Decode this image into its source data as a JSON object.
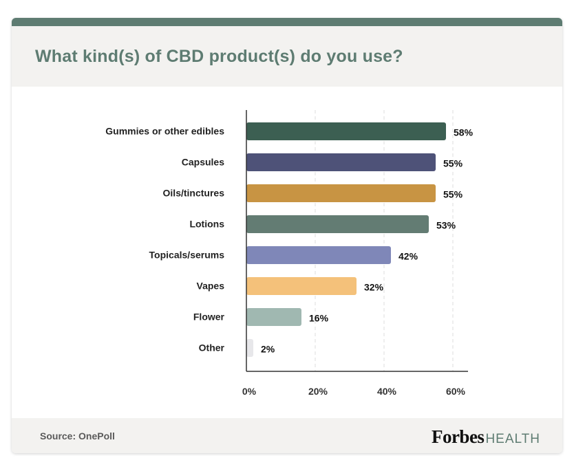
{
  "title": "What kind(s) of CBD product(s) do you use?",
  "source": "Source:  OnePoll",
  "brand": {
    "main": "Forbes",
    "sub": "HEALTH"
  },
  "colors": {
    "accent": "#5e7c72",
    "header_bg": "#f3f2f0",
    "bars": [
      "#3c5f52",
      "#4e5278",
      "#c89443",
      "#637c73",
      "#7f87b8",
      "#f4c17a",
      "#a0b8b1",
      "#e7e7ea"
    ]
  },
  "chart_data": {
    "type": "bar",
    "orientation": "horizontal",
    "categories": [
      "Gummies or other edibles",
      "Capsules",
      "Oils/tinctures",
      "Lotions",
      "Topicals/serums",
      "Vapes",
      "Flower",
      "Other"
    ],
    "values": [
      58,
      55,
      55,
      53,
      42,
      32,
      16,
      2
    ],
    "value_labels": [
      "58%",
      "55%",
      "55%",
      "53%",
      "42%",
      "32%",
      "16%",
      "2%"
    ],
    "xlim": [
      0,
      60
    ],
    "xticks": [
      0,
      20,
      40,
      60
    ],
    "xtick_labels": [
      "0%",
      "20%",
      "40%",
      "60%"
    ],
    "grid": "vertical dashed"
  }
}
